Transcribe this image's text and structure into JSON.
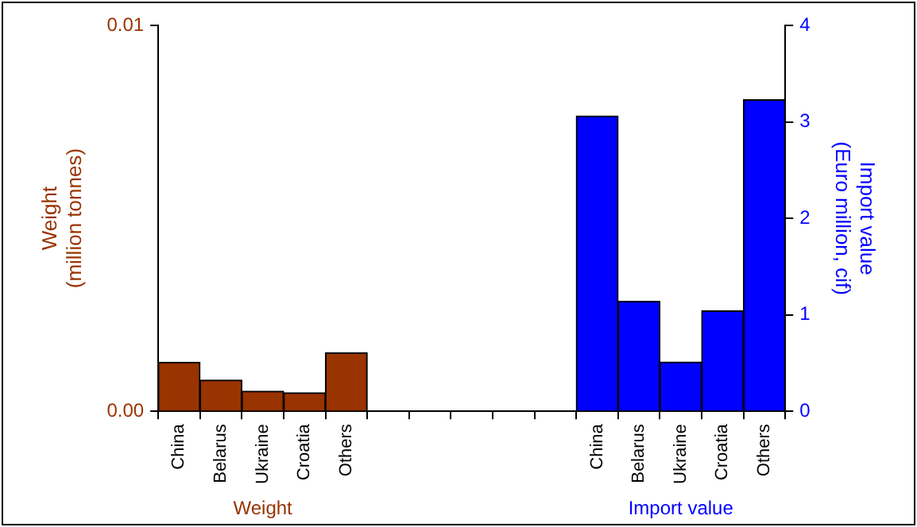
{
  "chart_data": {
    "type": "bar",
    "ylabel": "Weight\n(million tonnes)",
    "y2label": "Import value\n(Euro million, cif)",
    "categories": [
      "China",
      "Belarus",
      "Ukraine",
      "Croatia",
      "Others",
      null,
      null,
      null,
      null,
      null,
      "China",
      "Belarus",
      "Ukraine",
      "Croatia",
      "Others"
    ],
    "series": [
      {
        "name": "Weight",
        "color": "#993300",
        "values": [
          0.00127,
          0.00081,
          0.00052,
          0.00048,
          0.00152,
          null,
          null,
          null,
          null,
          null,
          null,
          null,
          null,
          null,
          null
        ]
      },
      {
        "name": "Import value",
        "color": "#0000ff",
        "axis": "y2",
        "values": [
          null,
          null,
          null,
          null,
          null,
          null,
          null,
          null,
          null,
          null,
          3.06,
          1.14,
          0.51,
          1.04,
          3.23
        ]
      }
    ],
    "ylim": [
      0,
      0.01
    ],
    "yticks": [
      {
        "value": 0,
        "label": "0.00"
      },
      0.01
    ],
    "y2lim": [
      0,
      4
    ],
    "y2ticks": [
      0,
      1,
      2,
      3,
      4
    ],
    "grid": false,
    "legend": false
  }
}
